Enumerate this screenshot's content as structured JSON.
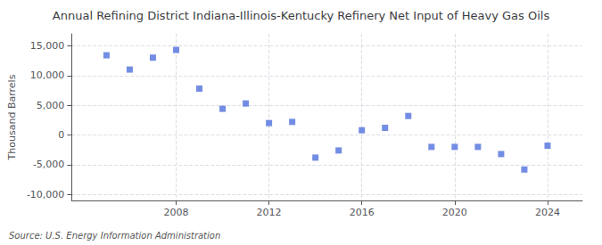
{
  "chart_data": {
    "type": "scatter",
    "title": "Annual Refining District Indiana-Illinois-Kentucky Refinery Net Input of Heavy Gas Oils",
    "ylabel": "Thousand Barrels",
    "source": "Source: U.S. Energy Information Administration",
    "x": [
      2005,
      2006,
      2007,
      2008,
      2009,
      2010,
      2011,
      2012,
      2013,
      2014,
      2015,
      2016,
      2017,
      2018,
      2019,
      2020,
      2021,
      2022,
      2023,
      2024
    ],
    "values": [
      13400,
      11000,
      13000,
      14300,
      7800,
      4400,
      5300,
      2000,
      2200,
      -3800,
      -2600,
      800,
      1200,
      3200,
      -2000,
      -2000,
      -2000,
      -3200,
      -5800,
      -1800
    ],
    "xlim": [
      2003.5,
      2025.5
    ],
    "xticks": [
      2008,
      2012,
      2016,
      2020,
      2024
    ],
    "ylim": [
      -11000,
      17000
    ],
    "yticks": [
      {
        "value": -10000,
        "label": "-10,000"
      },
      {
        "value": -5000,
        "label": "-5,000"
      },
      0,
      {
        "value": 5000,
        "label": "5,000"
      },
      {
        "value": 10000,
        "label": "10,000"
      },
      {
        "value": 15000,
        "label": "15,000"
      }
    ],
    "grid": true,
    "marker": "square"
  }
}
